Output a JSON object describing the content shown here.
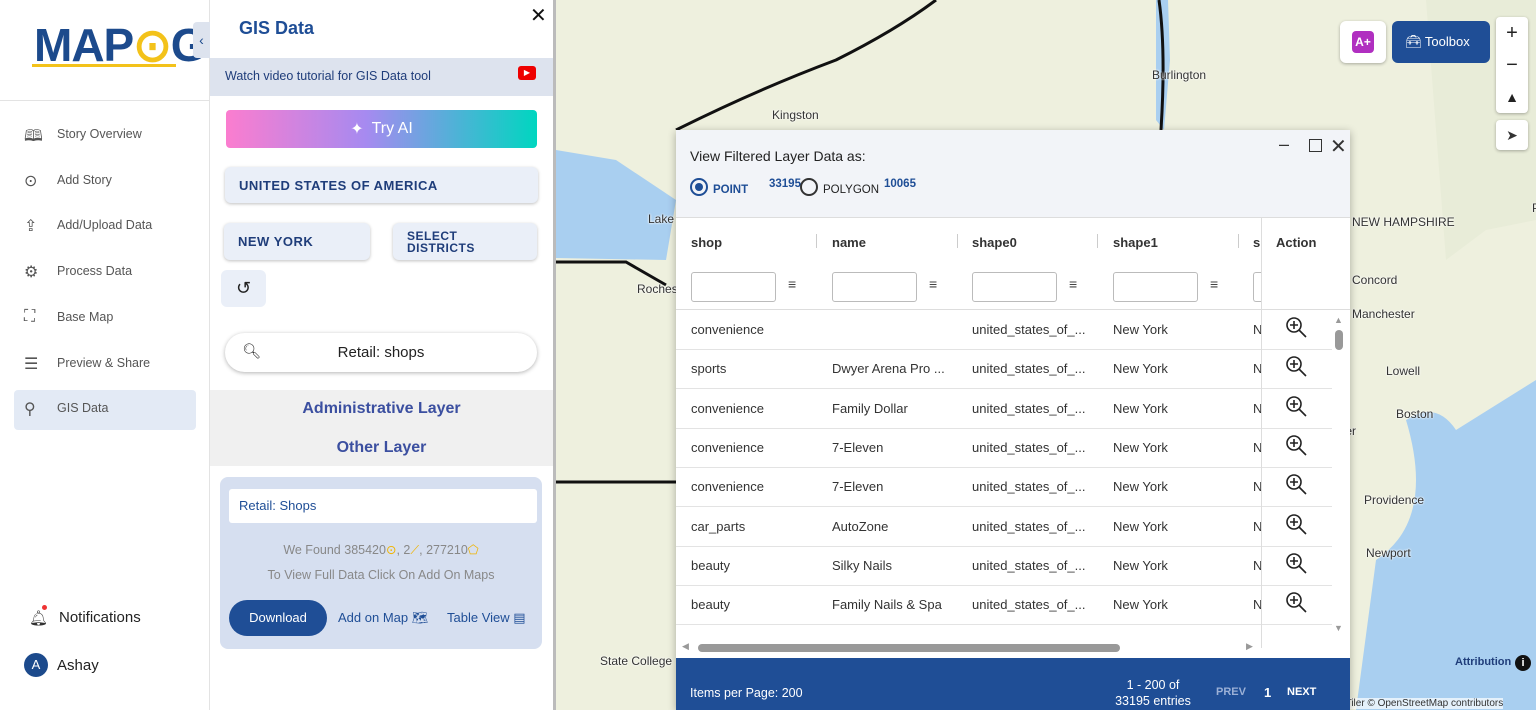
{
  "logo": {
    "left": "MAP",
    "right": "G"
  },
  "sidebar": {
    "items": [
      "Story Overview",
      "Add Story",
      "Add/Upload Data",
      "Process Data",
      "Base Map",
      "Preview & Share",
      "GIS Data"
    ],
    "notifications": "Notifications",
    "user": {
      "initial": "A",
      "name": "Ashay"
    }
  },
  "panel": {
    "title": "GIS Data",
    "tutorial": "Watch video tutorial for GIS Data tool",
    "try_ai": "Try AI",
    "country": "UNITED STATES OF AMERICA",
    "state": "NEW YORK",
    "districts": "SELECT DISTRICTS",
    "search": "Retail: shops",
    "layers": [
      "Administrative Layer",
      "Other Layer"
    ],
    "result": {
      "name": "Retail: Shops",
      "found": "We Found",
      "points": 385420,
      "lines": 2,
      "polygons": 277210,
      "hint": "To View Full Data Click On Add On Maps",
      "download": "Download",
      "add_on_map": "Add on Map",
      "table_view": "Table View"
    }
  },
  "map": {
    "places": [
      "Burlington",
      "Kingston",
      "Lake",
      "Rochester",
      "Portland",
      "NEW HAMPSHIRE",
      "Concord",
      "Manchester",
      "Lowell",
      "Boston",
      "Gloucester",
      "Providence",
      "Newport",
      "State College"
    ],
    "toolbox": "Toolbox",
    "attribution": "Attribution",
    "credit": "© MapTiler © OpenStreetMap contributors"
  },
  "dialog": {
    "title": "View Filtered Layer Data as:",
    "options": [
      {
        "label": "POINT",
        "count": 33195
      },
      {
        "label": "POLYGON",
        "count": 10065
      }
    ],
    "columns": [
      "shop",
      "name",
      "shape0",
      "shape1",
      "sl",
      "Action"
    ],
    "rows": [
      [
        "convenience",
        "",
        "united_states_of_...",
        "New York",
        "N"
      ],
      [
        "sports",
        "Dwyer Arena Pro ...",
        "united_states_of_...",
        "New York",
        "N"
      ],
      [
        "convenience",
        "Family Dollar",
        "united_states_of_...",
        "New York",
        "N"
      ],
      [
        "convenience",
        "7-Eleven",
        "united_states_of_...",
        "New York",
        "N"
      ],
      [
        "convenience",
        "7-Eleven",
        "united_states_of_...",
        "New York",
        "N"
      ],
      [
        "car_parts",
        "AutoZone",
        "united_states_of_...",
        "New York",
        "N"
      ],
      [
        "beauty",
        "Silky Nails",
        "united_states_of_...",
        "New York",
        "N"
      ],
      [
        "beauty",
        "Family Nails & Spa",
        "united_states_of_...",
        "New York",
        "N"
      ]
    ],
    "pagination": {
      "items_per_page": "Items per Page: 200",
      "range": "1 - 200 of",
      "entries": "33195 entries",
      "prev": "PREV",
      "page": "1",
      "next": "NEXT"
    }
  }
}
